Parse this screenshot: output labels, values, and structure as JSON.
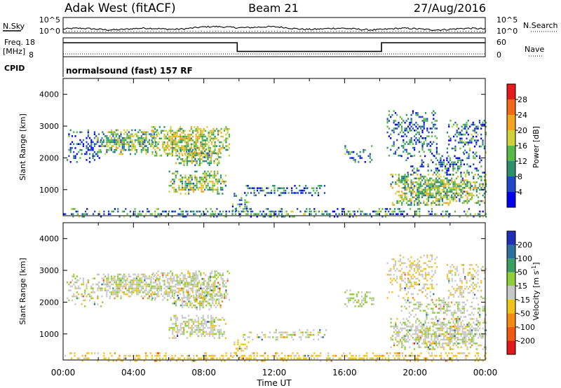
{
  "header": {
    "station": "Adak West (fitACF)",
    "beam": "Beam 21",
    "date": "27/Aug/2016"
  },
  "strip_nsky": {
    "label": "N.Sky",
    "tick_top": "10^5",
    "tick_bottom": "10^0",
    "right_label": "N.Search",
    "right_tick_top": "10^5",
    "right_tick_bottom": "10^0",
    "range_log": [
      0,
      5
    ]
  },
  "strip_freq": {
    "label_top": "Freq.",
    "label_unit": "[MHz]",
    "ticks_left": [
      "18",
      "8"
    ],
    "ticks_right": [
      "60",
      "0"
    ],
    "right_label": "Nave",
    "freq_range": [
      8,
      18
    ],
    "nave_range": [
      0,
      60
    ]
  },
  "cpid": {
    "label": "CPID",
    "text": "normalsound (fast) 157 RF"
  },
  "time_axis": {
    "title": "Time UT",
    "ticks": [
      "00:00",
      "04:00",
      "08:00",
      "12:00",
      "16:00",
      "20:00",
      "00:00"
    ],
    "range_hours": [
      0,
      24
    ]
  },
  "power_panel": {
    "ylabel": "Slant Range [km]",
    "yticks": [
      "1000",
      "2000",
      "3000",
      "4000"
    ],
    "cbar_label": "Power [dB]",
    "cbar_ticks": [
      "4",
      "8",
      "12",
      "16",
      "20",
      "24",
      "28"
    ],
    "cbar_colors": [
      "#0000ee",
      "#1f49c8",
      "#2a8f6a",
      "#59b84a",
      "#cfd23a",
      "#f3a51d",
      "#f06a1a",
      "#e51b1b"
    ]
  },
  "velocity_panel": {
    "ylabel": "Slant Range [km]",
    "yticks": [
      "1000",
      "2000",
      "3000",
      "4000"
    ],
    "cbar_label": "Velocity [m s",
    "cbar_label_sup": "-1",
    "cbar_label_end": "]",
    "cbar_ticks": [
      "200",
      "100",
      "50",
      "15",
      "-15",
      "-50",
      "-100",
      "-200"
    ],
    "cbar_colors": [
      "#1f2fb8",
      "#2c6fa0",
      "#3aa060",
      "#8fce3a",
      "#c8c8c8",
      "#f2c21c",
      "#f38a12",
      "#f05a10",
      "#e01818"
    ]
  },
  "chart_data": {
    "type": "heatmap",
    "x_range_hours": [
      0,
      24
    ],
    "y_range_km": [
      180,
      4500
    ],
    "frequency_steps": [
      {
        "start_h": 0,
        "end_h": 9.9,
        "mhz": 15.4
      },
      {
        "start_h": 9.9,
        "end_h": 18.1,
        "mhz": 10.8
      },
      {
        "start_h": 18.1,
        "end_h": 24,
        "mhz": 15.4
      }
    ],
    "nave_level": 9,
    "scatter_regions": [
      {
        "t0": 0.2,
        "t1": 2.2,
        "r0": 1900,
        "r1": 2900,
        "density": 0.35,
        "power": 6,
        "vel": 5
      },
      {
        "t0": 1.9,
        "t1": 5.4,
        "r0": 2150,
        "r1": 2900,
        "density": 0.75,
        "power": 14,
        "vel": 2
      },
      {
        "t0": 5.0,
        "t1": 9.4,
        "r0": 2100,
        "r1": 3000,
        "density": 0.7,
        "power": 16,
        "vel": 3
      },
      {
        "t0": 6.2,
        "t1": 9.0,
        "r0": 1800,
        "r1": 2300,
        "density": 0.65,
        "power": 15,
        "vel": 4
      },
      {
        "t0": 6.0,
        "t1": 9.2,
        "r0": 900,
        "r1": 1600,
        "density": 0.65,
        "power": 15,
        "vel": 3
      },
      {
        "t0": 9.6,
        "t1": 10.5,
        "r0": 300,
        "r1": 900,
        "density": 0.45,
        "power": 10,
        "vel": -20
      },
      {
        "t0": 10.2,
        "t1": 15.0,
        "r0": 850,
        "r1": 1150,
        "density": 0.5,
        "power": 8,
        "vel": 6
      },
      {
        "t0": 16.0,
        "t1": 17.6,
        "r0": 1900,
        "r1": 2400,
        "density": 0.4,
        "power": 10,
        "vel": 20
      },
      {
        "t0": 18.4,
        "t1": 21.2,
        "r0": 2100,
        "r1": 3500,
        "density": 0.35,
        "power": 8,
        "vel": -10
      },
      {
        "t0": 19.2,
        "t1": 24.0,
        "r0": 1500,
        "r1": 2150,
        "density": 0.35,
        "power": 8,
        "vel": 10
      },
      {
        "t0": 18.6,
        "t1": 24.0,
        "r0": 550,
        "r1": 1500,
        "density": 0.7,
        "power": 15,
        "vel": 2
      },
      {
        "t0": 21.8,
        "t1": 24.0,
        "r0": 2200,
        "r1": 3200,
        "density": 0.45,
        "power": 9,
        "vel": -8
      },
      {
        "t0": 0.0,
        "t1": 24.0,
        "r0": 180,
        "r1": 420,
        "density": 0.55,
        "power": 10,
        "vel": -30
      }
    ]
  }
}
